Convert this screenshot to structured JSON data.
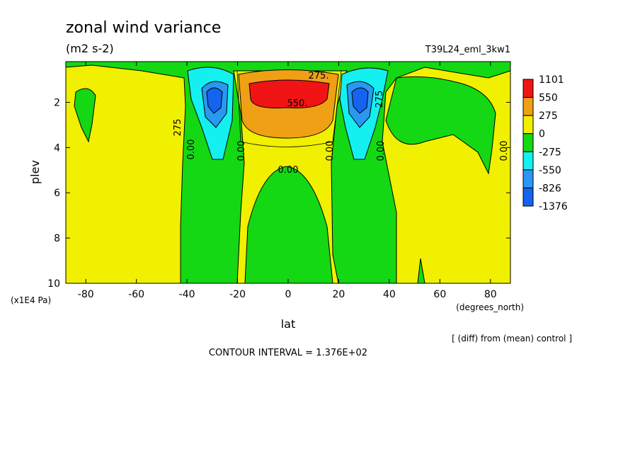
{
  "chart_data": {
    "type": "contour",
    "title": "zonal wind variance",
    "units": "(m2 s-2)",
    "run_label": "T39L24_eml_3kw1",
    "x_label": "lat",
    "x_units": "(degrees_north)",
    "y_label": "plev",
    "y_units": "(x1E4 Pa)",
    "note": "[ (diff) from (mean) control ]",
    "contour_interval": "CONTOUR INTERVAL = 1.376E+02",
    "xlim": [
      -87.9,
      87.9
    ],
    "xticks": [
      -80,
      -60,
      -40,
      -20,
      0,
      20,
      40,
      60,
      80
    ],
    "ylim": [
      10,
      0.2
    ],
    "yticks": [
      2,
      4,
      6,
      8,
      10
    ],
    "colorbar": {
      "levels": [
        1101,
        550,
        275,
        0,
        -275,
        -550,
        -826,
        -1376
      ],
      "colors": [
        "#f01414",
        "#f0a014",
        "#f0f000",
        "#14d814",
        "#14f0f0",
        "#2898f0",
        "#1464f0"
      ]
    },
    "contour_labels": [
      {
        "value": 275,
        "label": "275."
      },
      {
        "value": 550,
        "label": "550."
      },
      {
        "value": 0,
        "label": "0.00"
      },
      {
        "value": 0,
        "label": "0.00"
      },
      {
        "value": 0,
        "label": "0.00"
      },
      {
        "value": 0,
        "label": "0.00"
      },
      {
        "value": 0,
        "label": "0.00"
      },
      {
        "value": 0,
        "label": "0.00"
      },
      {
        "value": 275,
        "label": "275"
      },
      {
        "value": 275,
        "label": "275"
      }
    ]
  }
}
